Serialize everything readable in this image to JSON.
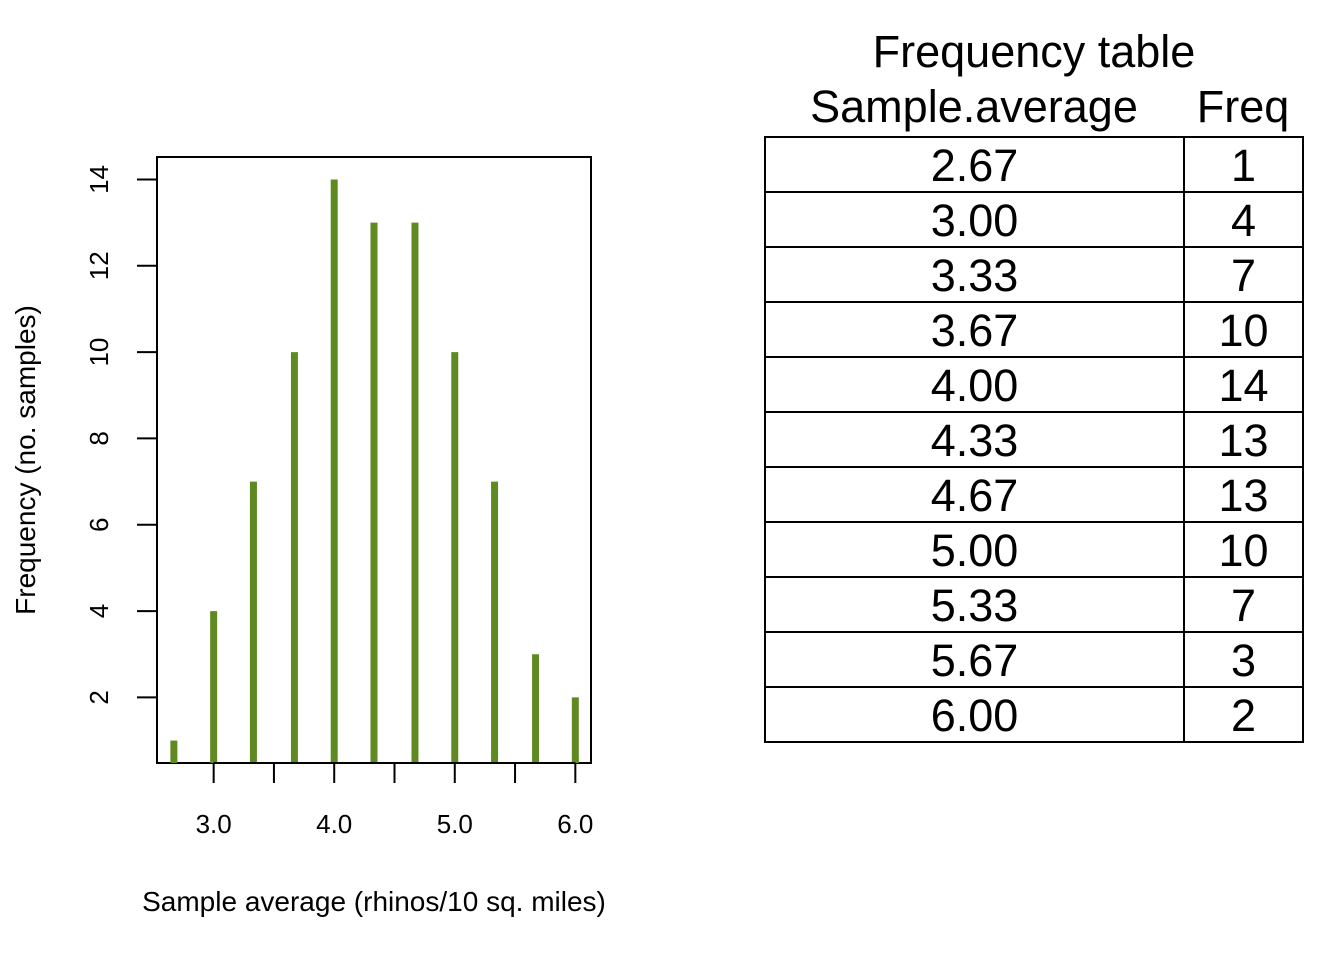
{
  "chart_data": [
    {
      "type": "bar",
      "xlabel": "Sample average (rhinos/10 sq. miles)",
      "ylabel": "Frequency (no. samples)",
      "x": [
        2.67,
        3.0,
        3.33,
        3.67,
        4.0,
        4.33,
        4.67,
        5.0,
        5.33,
        5.67,
        6.0
      ],
      "values": [
        1,
        4,
        7,
        10,
        14,
        13,
        13,
        10,
        7,
        3,
        2
      ],
      "xlim": [
        2.53,
        6.13
      ],
      "ylim": [
        0.48,
        14.52
      ],
      "x_ticks": [
        3.0,
        3.5,
        4.0,
        4.5,
        5.0,
        5.5,
        6.0
      ],
      "x_tick_labels": [
        "3.0",
        "4.0",
        "5.0",
        "6.0"
      ],
      "x_labeled_ticks": [
        3.0,
        4.0,
        5.0,
        6.0
      ],
      "y_ticks": [
        2,
        4,
        6,
        8,
        10,
        12,
        14
      ],
      "y_tick_labels": [
        "2",
        "4",
        "6",
        "8",
        "10",
        "12",
        "14"
      ],
      "bar_color": "#5f8a22",
      "grid": false
    },
    {
      "type": "table",
      "title": "Frequency table",
      "columns": [
        "Sample.average",
        "Freq"
      ],
      "rows": [
        [
          "2.67",
          "1"
        ],
        [
          "3.00",
          "4"
        ],
        [
          "3.33",
          "7"
        ],
        [
          "3.67",
          "10"
        ],
        [
          "4.00",
          "14"
        ],
        [
          "4.33",
          "13"
        ],
        [
          "4.67",
          "13"
        ],
        [
          "5.00",
          "10"
        ],
        [
          "5.33",
          "7"
        ],
        [
          "5.67",
          "3"
        ],
        [
          "6.00",
          "2"
        ]
      ]
    }
  ]
}
